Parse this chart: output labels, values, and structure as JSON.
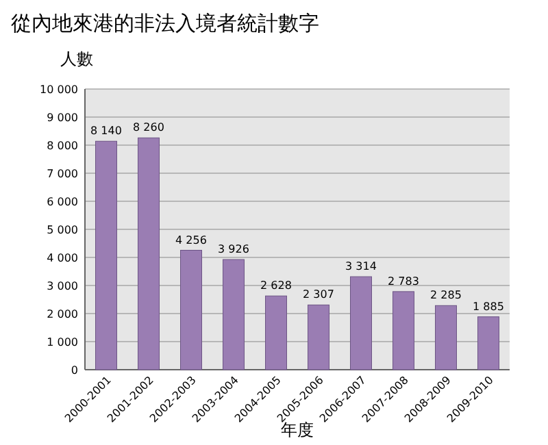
{
  "chart_data": {
    "type": "bar",
    "title": "從內地來港的非法入境者統計數字",
    "ylabel": "人數",
    "xlabel": "年度",
    "categories": [
      "2000-2001",
      "2001-2002",
      "2002-2003",
      "2003-2004",
      "2004-2005",
      "2005-2006",
      "2006-2007",
      "2007-2008",
      "2008-2009",
      "2009-2010"
    ],
    "values": [
      8140,
      8260,
      4256,
      3926,
      2628,
      2307,
      3314,
      2783,
      2285,
      1885
    ],
    "value_labels": [
      "8 140",
      "8 260",
      "4 256",
      "3 926",
      "2 628",
      "2 307",
      "3 314",
      "2 783",
      "2 285",
      "1 885"
    ],
    "color": "#9a7db3",
    "ylim": [
      0,
      10000
    ],
    "yticks": [
      0,
      {
        "value": 1000,
        "label": "1 000"
      },
      {
        "value": 2000,
        "label": "2 000"
      },
      {
        "value": 3000,
        "label": "3 000"
      },
      {
        "value": 4000,
        "label": "4 000"
      },
      {
        "value": 5000,
        "label": "5 000"
      },
      {
        "value": 6000,
        "label": "6 000"
      },
      {
        "value": 7000,
        "label": "7 000"
      },
      {
        "value": 8000,
        "label": "8 000"
      },
      {
        "value": 9000,
        "label": "9 000"
      },
      {
        "value": 10000,
        "label": "10 000"
      }
    ],
    "grid": "y"
  }
}
